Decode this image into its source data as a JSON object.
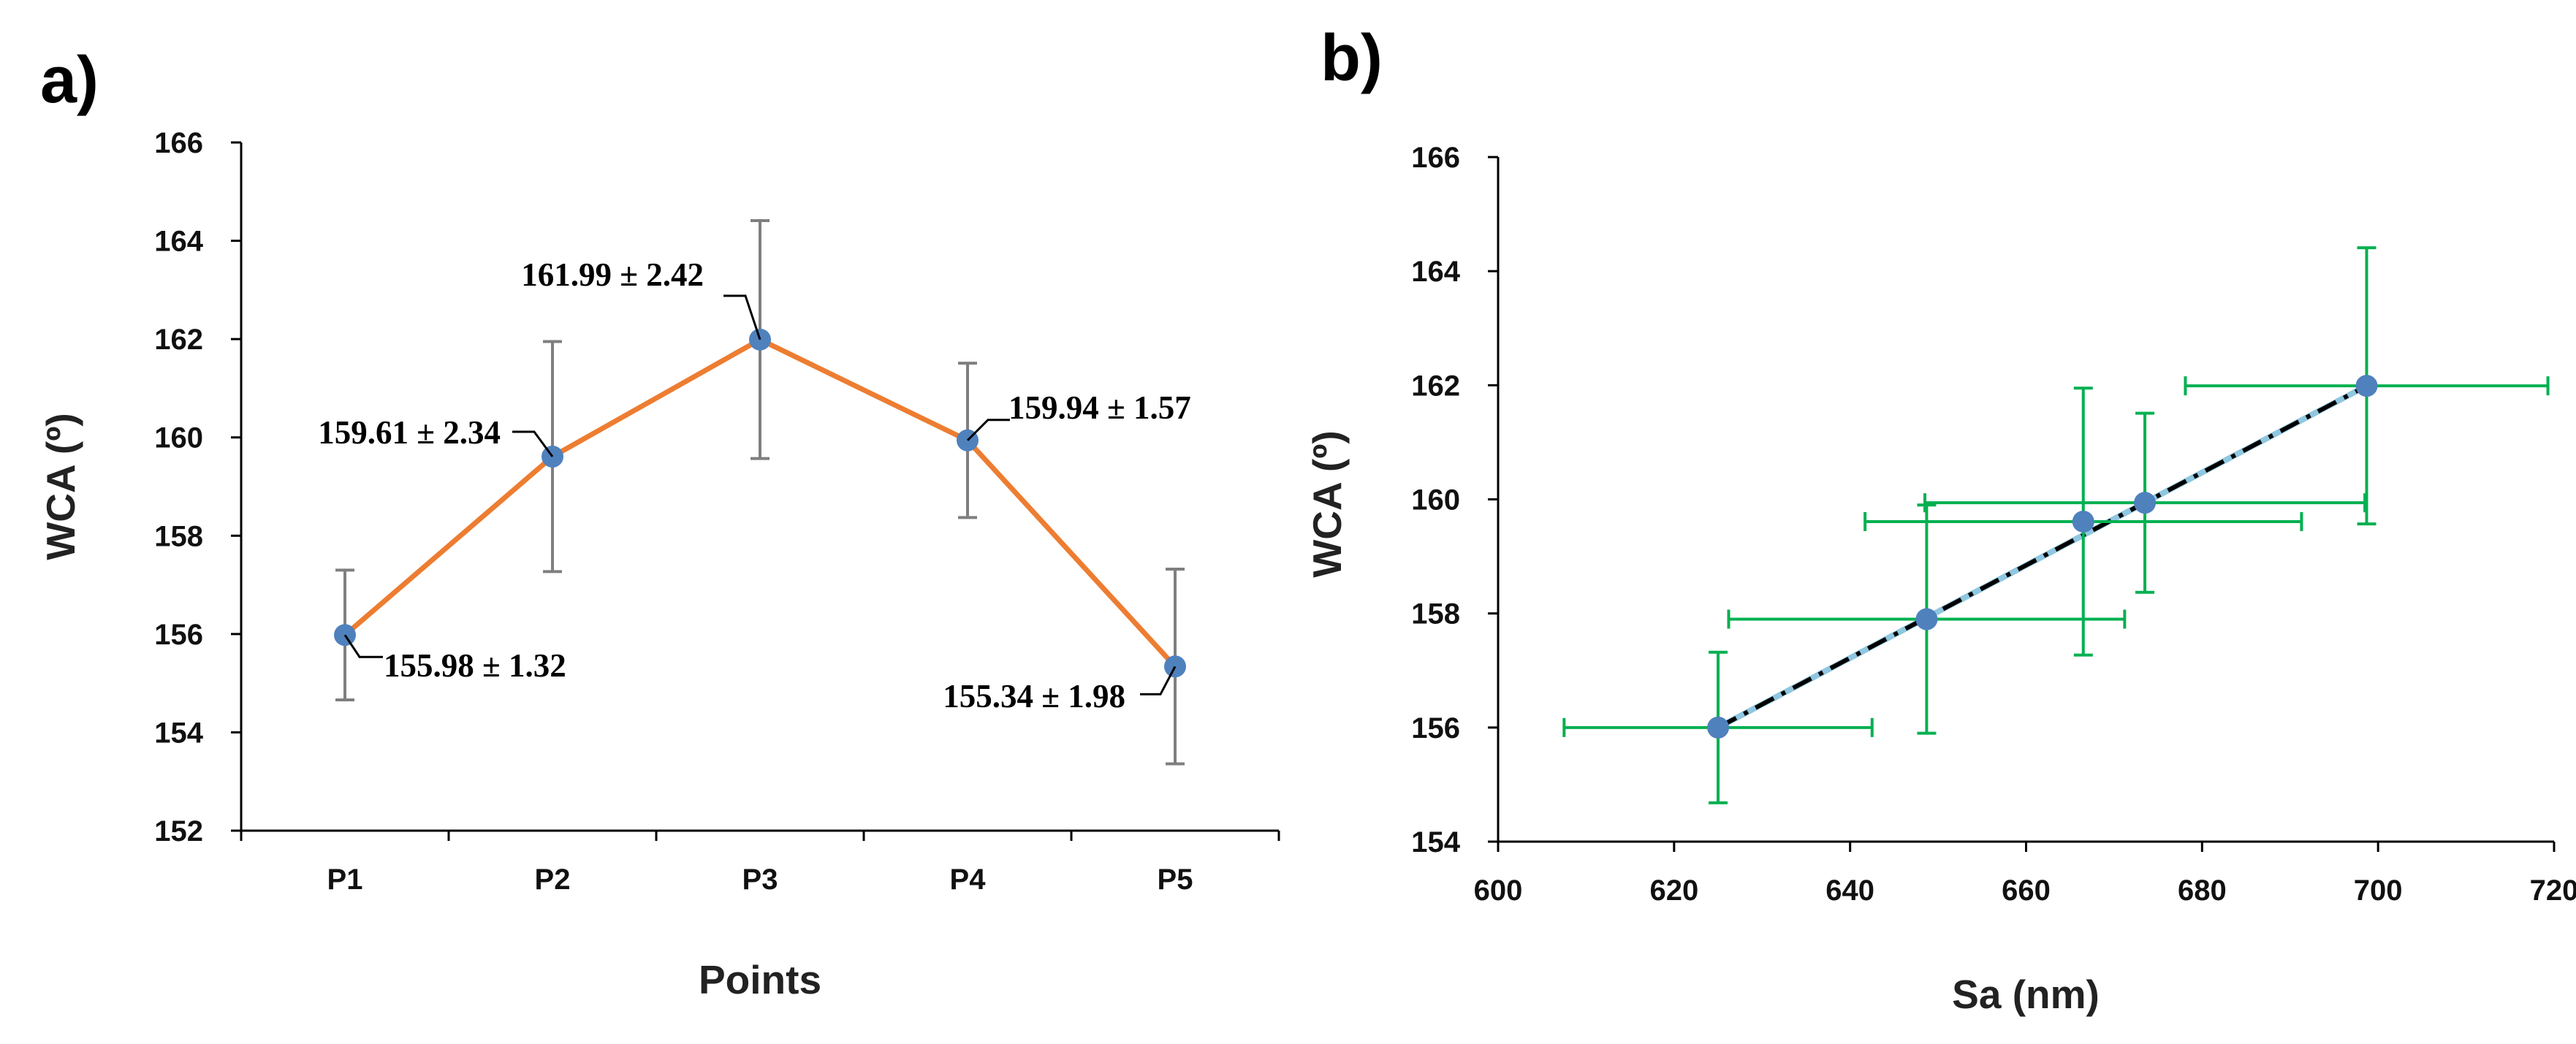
{
  "chart_data": [
    {
      "panel_label": "a)",
      "type": "line",
      "categories": [
        "P1",
        "P2",
        "P3",
        "P4",
        "P5"
      ],
      "values": [
        155.98,
        159.61,
        161.99,
        159.94,
        155.34
      ],
      "errors": [
        1.32,
        2.34,
        2.42,
        1.57,
        1.98
      ],
      "annotations": [
        "155.98 ± 1.32",
        "159.61 ± 2.34",
        "161.99 ± 2.42",
        "159.94 ± 1.57",
        "155.34 ± 1.98"
      ],
      "xlabel": "Points",
      "ylabel": "WCA (º)",
      "ylim": [
        152,
        166
      ],
      "yticks": [
        "152",
        "154",
        "156",
        "158",
        "160",
        "162",
        "164",
        "166"
      ],
      "line_color": "#ED7D31",
      "marker_color": "#4F81BD",
      "errorbar_color": "#7F7F7F"
    },
    {
      "panel_label": "b)",
      "type": "scatter",
      "points": [
        {
          "x": 625,
          "y": 156.0,
          "xerr": 17.5,
          "yerr": 1.32
        },
        {
          "x": 648.7,
          "y": 157.9,
          "xerr": 22.5,
          "yerr": 2.0
        },
        {
          "x": 666.5,
          "y": 159.61,
          "xerr": 24.8,
          "yerr": 2.34
        },
        {
          "x": 673.5,
          "y": 159.94,
          "xerr": 25.0,
          "yerr": 1.57
        },
        {
          "x": 698.7,
          "y": 161.99,
          "xerr": 20.6,
          "yerr": 2.42
        }
      ],
      "trendline": {
        "x": [
          625,
          698.7
        ],
        "y": [
          156.0,
          161.99
        ]
      },
      "xlabel": "Sa (nm)",
      "ylabel": "WCA (º)",
      "xlim": [
        600,
        720
      ],
      "ylim": [
        154,
        166
      ],
      "xticks": [
        "600",
        "620",
        "640",
        "660",
        "680",
        "700",
        "720"
      ],
      "yticks": [
        "154",
        "156",
        "158",
        "160",
        "162",
        "164",
        "166"
      ],
      "marker_color": "#4F81BD",
      "errorbar_color": "#00B050",
      "trendline_color": "#000000",
      "trendline_highlight": "#8FC7E0"
    }
  ]
}
